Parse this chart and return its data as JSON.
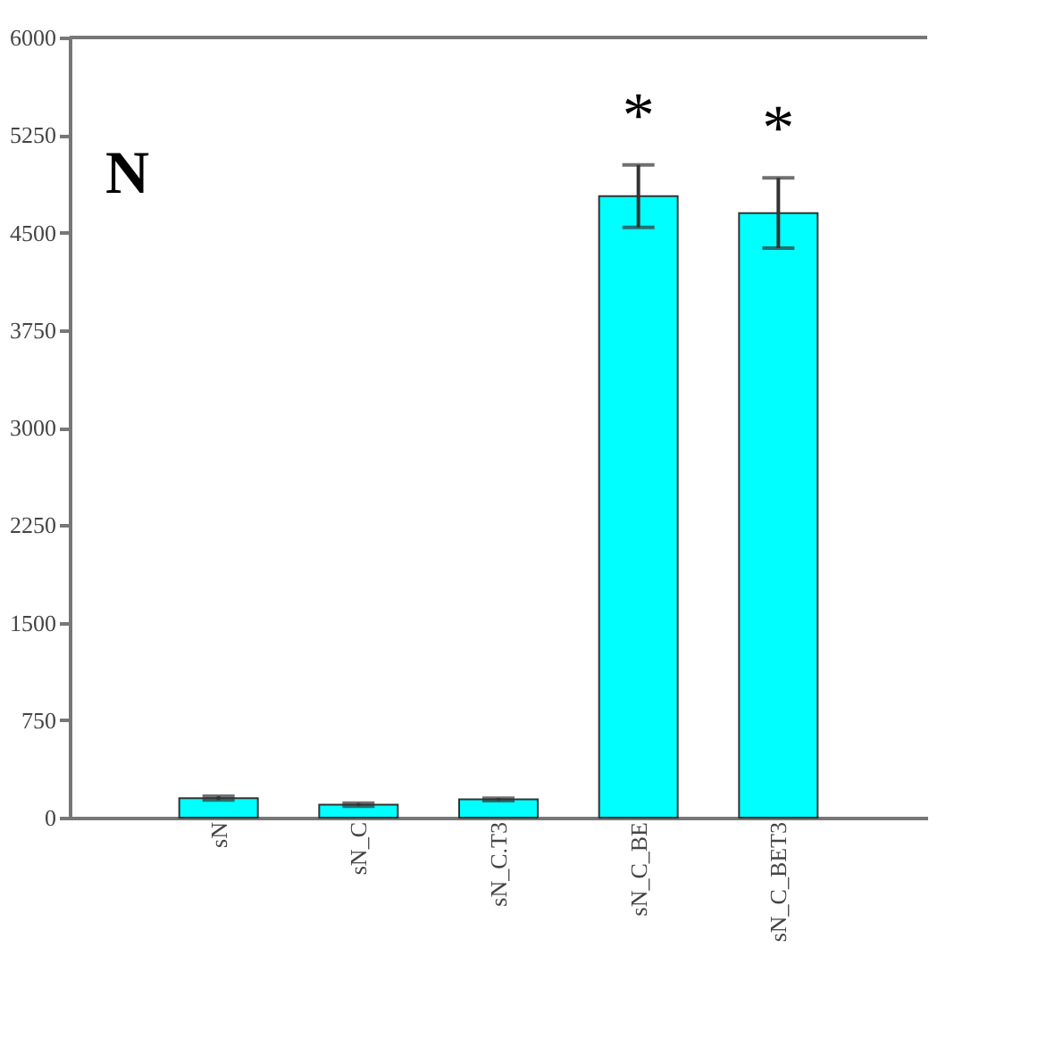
{
  "chart_data": {
    "type": "bar",
    "categories": [
      "sN",
      "sN_C",
      "sN_C.T3",
      "sN_C_BE",
      "sN_C_BET3"
    ],
    "values": [
      150,
      100,
      140,
      4780,
      4650
    ],
    "errors": [
      15,
      12,
      10,
      240,
      270
    ],
    "colors": [
      "#00ffff",
      "#00ffff",
      "#00ffff",
      "#00ffff",
      "#00ffff"
    ],
    "ylim": [
      0,
      6000
    ],
    "yticks": [
      0,
      750,
      1500,
      2250,
      3000,
      3750,
      4500,
      5250,
      6000
    ],
    "grid": false,
    "annotations": [
      "N",
      {
        "text": "*",
        "x": "sN_C_BE",
        "y": 5020
      },
      {
        "text": "*",
        "x": "sN_C_BET3",
        "y": 4920
      }
    ]
  }
}
